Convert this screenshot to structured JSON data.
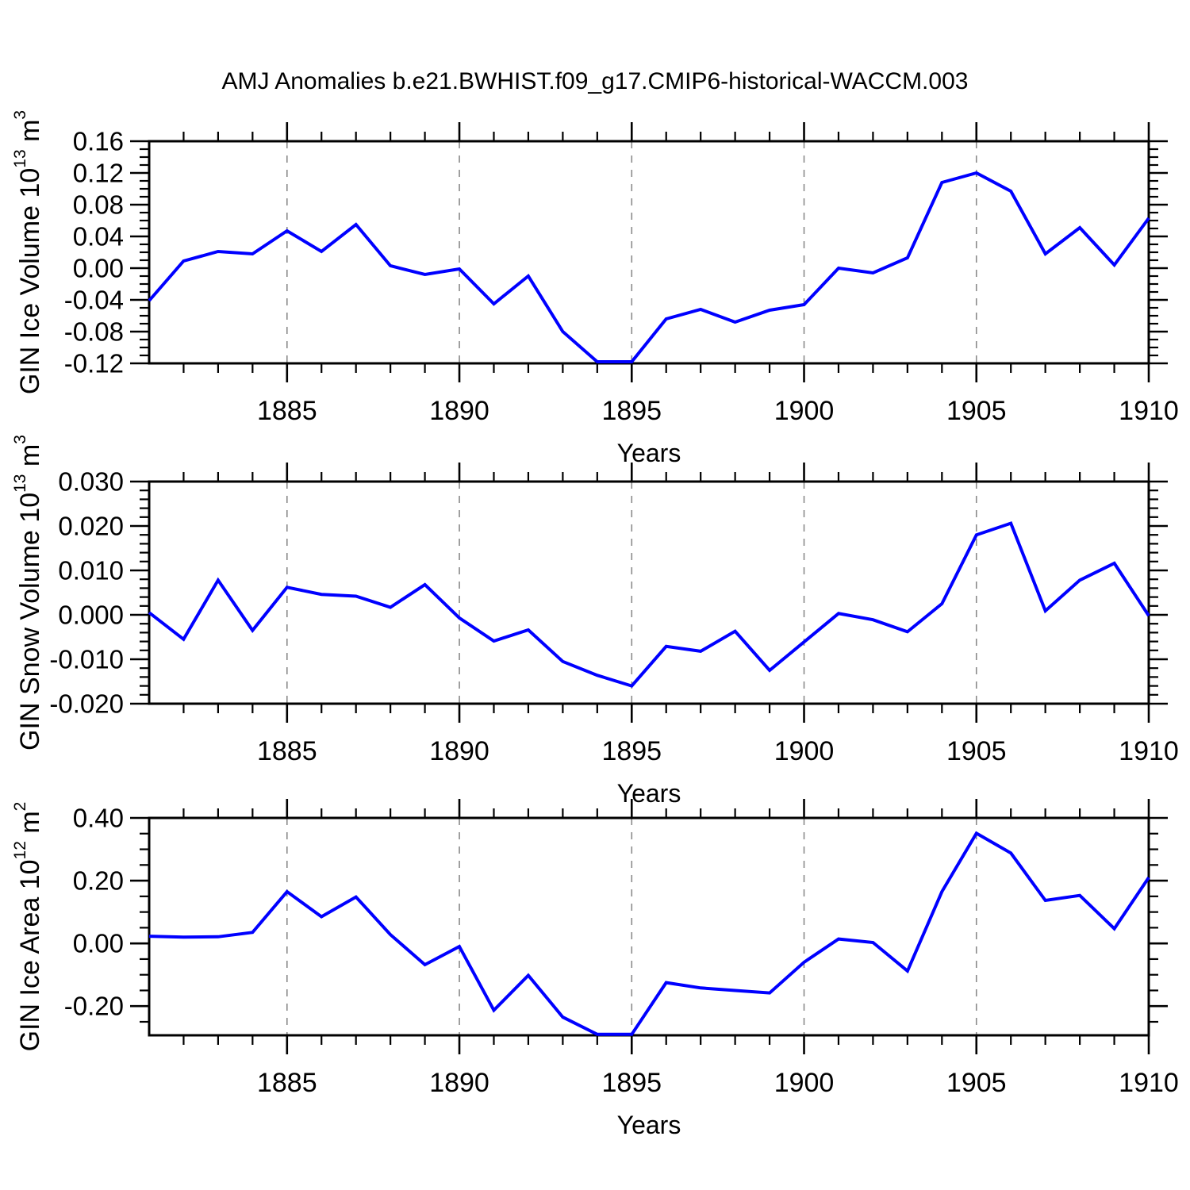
{
  "title": "AMJ Anomalies b.e21.BWHIST.f09_g17.CMIP6-historical-WACCM.003",
  "colors": {
    "line": "#0000ff",
    "grid": "#8a8a8a",
    "frame": "#000000",
    "background": "#ffffff"
  },
  "x_axis": {
    "label": "Years",
    "range": [
      1881,
      1910
    ],
    "major_tick_years": [
      1885,
      1890,
      1895,
      1900,
      1905,
      1910
    ],
    "gridline_years": [
      1885,
      1890,
      1895,
      1900,
      1905
    ]
  },
  "chart_data": [
    {
      "type": "line",
      "name": "gin-ice-volume",
      "ylabel_text": "GIN Ice Volume 10^13 m^3",
      "ylabel_parts": [
        {
          "t": "GIN Ice Volume 10",
          "sup": false
        },
        {
          "t": "13",
          "sup": true
        },
        {
          "t": " m",
          "sup": false
        },
        {
          "t": "3",
          "sup": true
        }
      ],
      "xlabel": "Years",
      "ylim": [
        -0.12,
        0.16
      ],
      "ytick_major": [
        0.16,
        0.12,
        0.08,
        0.04,
        0.0,
        -0.04,
        -0.08,
        -0.12
      ],
      "ytick_labels": [
        "0.16",
        "0.12",
        "0.08",
        "0.04",
        "0.00",
        "-0.04",
        "-0.08",
        "-0.12"
      ],
      "ytick_minor_step": 0.01,
      "x": [
        1881,
        1882,
        1883,
        1884,
        1885,
        1886,
        1887,
        1888,
        1889,
        1890,
        1891,
        1892,
        1893,
        1894,
        1895,
        1896,
        1897,
        1898,
        1899,
        1900,
        1901,
        1902,
        1903,
        1904,
        1905,
        1906,
        1907,
        1908,
        1909,
        1910
      ],
      "values": [
        -0.041,
        0.009,
        0.021,
        0.018,
        0.047,
        0.021,
        0.055,
        0.003,
        -0.008,
        -0.001,
        -0.045,
        -0.01,
        -0.08,
        -0.118,
        -0.118,
        -0.064,
        -0.052,
        -0.068,
        -0.053,
        -0.046,
        0.0,
        -0.006,
        0.013,
        0.108,
        0.12,
        0.097,
        0.018,
        0.051,
        0.004,
        0.063
      ]
    },
    {
      "type": "line",
      "name": "gin-snow-volume",
      "ylabel_text": "GIN Snow Volume 10^13 m^3",
      "ylabel_parts": [
        {
          "t": "GIN Snow Volume 10",
          "sup": false
        },
        {
          "t": "13",
          "sup": true
        },
        {
          "t": " m",
          "sup": false
        },
        {
          "t": "3",
          "sup": true
        }
      ],
      "xlabel": "Years",
      "ylim": [
        -0.02,
        0.03
      ],
      "ytick_major": [
        0.03,
        0.02,
        0.01,
        0.0,
        -0.01,
        -0.02
      ],
      "ytick_labels": [
        "0.030",
        "0.020",
        "0.010",
        "0.000",
        "-0.010",
        "-0.020"
      ],
      "ytick_minor_step": 0.002,
      "x": [
        1881,
        1882,
        1883,
        1884,
        1885,
        1886,
        1887,
        1888,
        1889,
        1890,
        1891,
        1892,
        1893,
        1894,
        1895,
        1896,
        1897,
        1898,
        1899,
        1900,
        1901,
        1902,
        1903,
        1904,
        1905,
        1906,
        1907,
        1908,
        1909,
        1910
      ],
      "values": [
        0.0005,
        -0.0055,
        0.0078,
        -0.0035,
        0.0062,
        0.0046,
        0.0042,
        0.0017,
        0.0068,
        -0.0007,
        -0.0059,
        -0.0034,
        -0.0105,
        -0.0136,
        -0.016,
        -0.0071,
        -0.0082,
        -0.0037,
        -0.0125,
        -0.0061,
        0.0003,
        -0.0011,
        -0.0038,
        0.0025,
        0.018,
        0.0206,
        0.0009,
        0.0078,
        0.0116,
        -0.0002
      ]
    },
    {
      "type": "line",
      "name": "gin-ice-area",
      "ylabel_text": "GIN Ice Area 10^12 m^2",
      "ylabel_parts": [
        {
          "t": "GIN Ice Area 10",
          "sup": false
        },
        {
          "t": "12",
          "sup": true
        },
        {
          "t": " m",
          "sup": false
        },
        {
          "t": "2",
          "sup": true
        }
      ],
      "xlabel": "Years",
      "ylim": [
        -0.293,
        0.4
      ],
      "ytick_major": [
        0.4,
        0.2,
        0.0,
        -0.2
      ],
      "ytick_labels": [
        "0.40",
        "0.20",
        "0.00",
        "-0.20"
      ],
      "ytick_minor_step": 0.05,
      "x": [
        1881,
        1882,
        1883,
        1884,
        1885,
        1886,
        1887,
        1888,
        1889,
        1890,
        1891,
        1892,
        1893,
        1894,
        1895,
        1896,
        1897,
        1898,
        1899,
        1900,
        1901,
        1902,
        1903,
        1904,
        1905,
        1906,
        1907,
        1908,
        1909,
        1910
      ],
      "values": [
        0.023,
        0.02,
        0.021,
        0.035,
        0.165,
        0.085,
        0.148,
        0.028,
        -0.068,
        -0.01,
        -0.213,
        -0.102,
        -0.235,
        -0.29,
        -0.29,
        -0.125,
        -0.142,
        -0.15,
        -0.158,
        -0.06,
        0.014,
        0.003,
        -0.088,
        0.165,
        0.351,
        0.288,
        0.137,
        0.153,
        0.047,
        0.21
      ]
    }
  ]
}
